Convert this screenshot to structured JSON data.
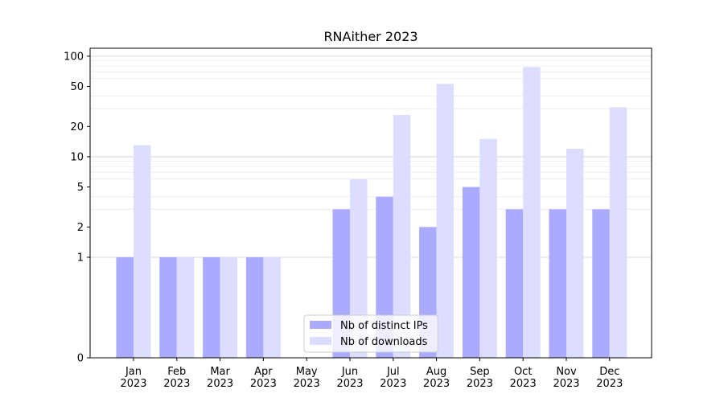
{
  "chart_data": {
    "type": "bar",
    "title": "RNAither 2023",
    "xlabel": "",
    "ylabel": "",
    "y_scale": "symlog",
    "ylim": [
      0,
      120
    ],
    "y_ticks": [
      0,
      1,
      2,
      5,
      10,
      20,
      50,
      100
    ],
    "grid": "horizontal",
    "legend_position": "lower center",
    "categories": [
      "Jan\n2023",
      "Feb\n2023",
      "Mar\n2023",
      "Apr\n2023",
      "May\n2023",
      "Jun\n2023",
      "Jul\n2023",
      "Aug\n2023",
      "Sep\n2023",
      "Oct\n2023",
      "Nov\n2023",
      "Dec\n2023"
    ],
    "series": [
      {
        "name": "Nb of distinct IPs",
        "color": "#aaaaff",
        "values": [
          1,
          1,
          1,
          1,
          0,
          3,
          4,
          2,
          5,
          3,
          3,
          3
        ]
      },
      {
        "name": "Nb of downloads",
        "color": "#ddddff",
        "values": [
          13,
          1,
          1,
          1,
          0,
          6,
          26,
          53,
          15,
          78,
          12,
          31
        ]
      }
    ]
  }
}
